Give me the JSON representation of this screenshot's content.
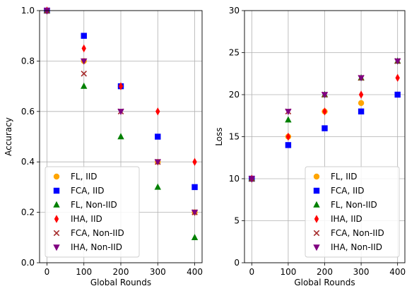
{
  "chart_data": [
    {
      "type": "scatter",
      "xlabel": "Global Rounds",
      "ylabel": "Accuracy",
      "xlim": [
        -20,
        420
      ],
      "ylim": [
        0.0,
        1.0
      ],
      "x_ticks": [
        0,
        100,
        200,
        300,
        400
      ],
      "y_ticks": [
        0.0,
        0.2,
        0.4,
        0.6,
        0.8,
        1.0
      ],
      "x_tick_labels": [
        "0",
        "100",
        "200",
        "300",
        "400"
      ],
      "y_tick_labels": [
        "0.0",
        "0.2",
        "0.4",
        "0.6",
        "0.8",
        "1.0"
      ],
      "grid": true,
      "legend_position": "lower-left",
      "series": [
        {
          "name": "FL, IID",
          "marker": "circle",
          "color": "#ffa500",
          "x": [
            0,
            100,
            200,
            300,
            400
          ],
          "y": [
            1.0,
            0.8,
            0.7,
            0.4,
            0.2
          ]
        },
        {
          "name": "FCA, IID",
          "marker": "square",
          "color": "#0000ff",
          "x": [
            0,
            100,
            200,
            300,
            400
          ],
          "y": [
            1.0,
            0.9,
            0.7,
            0.5,
            0.3
          ]
        },
        {
          "name": "FL, Non-IID",
          "marker": "triangle-up",
          "color": "#008000",
          "x": [
            0,
            100,
            200,
            300,
            400
          ],
          "y": [
            1.0,
            0.7,
            0.5,
            0.3,
            0.1
          ]
        },
        {
          "name": "IHA, IID",
          "marker": "thin-diamond",
          "color": "#ff0000",
          "x": [
            0,
            100,
            200,
            300,
            400
          ],
          "y": [
            1.0,
            0.85,
            0.7,
            0.6,
            0.4
          ]
        },
        {
          "name": "FCA, Non-IID",
          "marker": "x",
          "color": "#a52a2a",
          "x": [
            0,
            100,
            200,
            300,
            400
          ],
          "y": [
            1.0,
            0.75,
            0.6,
            0.4,
            0.2
          ]
        },
        {
          "name": "IHA, Non-IID",
          "marker": "triangle-down",
          "color": "#800080",
          "x": [
            0,
            100,
            200,
            300,
            400
          ],
          "y": [
            1.0,
            0.8,
            0.6,
            0.4,
            0.2
          ]
        }
      ]
    },
    {
      "type": "scatter",
      "xlabel": "Global Rounds",
      "ylabel": "Loss",
      "xlim": [
        -20,
        420
      ],
      "ylim": [
        0,
        30
      ],
      "x_ticks": [
        0,
        100,
        200,
        300,
        400
      ],
      "y_ticks": [
        0,
        5,
        10,
        15,
        20,
        25,
        30
      ],
      "x_tick_labels": [
        "0",
        "100",
        "200",
        "300",
        "400"
      ],
      "y_tick_labels": [
        "0",
        "5",
        "10",
        "15",
        "20",
        "25",
        "30"
      ],
      "grid": true,
      "legend_position": "lower-right",
      "series": [
        {
          "name": "FL, IID",
          "marker": "circle",
          "color": "#ffa500",
          "x": [
            0,
            100,
            200,
            300,
            400
          ],
          "y": [
            10,
            15,
            18,
            19,
            20
          ]
        },
        {
          "name": "FCA, IID",
          "marker": "square",
          "color": "#0000ff",
          "x": [
            0,
            100,
            200,
            300,
            400
          ],
          "y": [
            10,
            14,
            16,
            18,
            20
          ]
        },
        {
          "name": "FL, Non-IID",
          "marker": "triangle-up",
          "color": "#008000",
          "x": [
            0,
            100,
            200,
            300,
            400
          ],
          "y": [
            10,
            17,
            20,
            22,
            24
          ]
        },
        {
          "name": "IHA, IID",
          "marker": "thin-diamond",
          "color": "#ff0000",
          "x": [
            0,
            100,
            200,
            300,
            400
          ],
          "y": [
            10,
            15,
            18,
            20,
            22
          ]
        },
        {
          "name": "FCA, Non-IID",
          "marker": "x",
          "color": "#a52a2a",
          "x": [
            0,
            100,
            200,
            300,
            400
          ],
          "y": [
            10,
            18,
            20,
            22,
            24
          ]
        },
        {
          "name": "IHA, Non-IID",
          "marker": "triangle-down",
          "color": "#800080",
          "x": [
            0,
            100,
            200,
            300,
            400
          ],
          "y": [
            10,
            18,
            20,
            22,
            24
          ]
        }
      ]
    }
  ]
}
